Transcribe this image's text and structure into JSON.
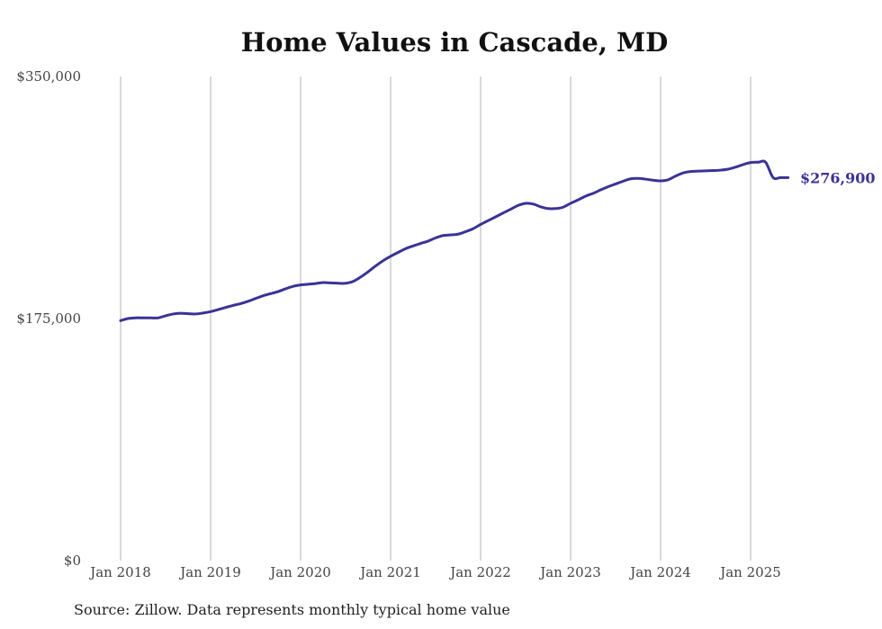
{
  "chart_data": {
    "type": "line",
    "title": "Home Values in Cascade, MD",
    "xlabel": "",
    "ylabel": "",
    "y_ticks": [
      "$0",
      "$175,000",
      "$350,000"
    ],
    "y_tick_values": [
      0,
      175000,
      350000
    ],
    "ylim": [
      0,
      350000
    ],
    "x_ticks": [
      "Jan 2018",
      "Jan 2019",
      "Jan 2020",
      "Jan 2021",
      "Jan 2022",
      "Jan 2023",
      "Jan 2024",
      "Jan 2025"
    ],
    "x_tick_dates": [
      "2018-01",
      "2019-01",
      "2020-01",
      "2021-01",
      "2022-01",
      "2023-01",
      "2024-01",
      "2025-01"
    ],
    "grid": "vertical",
    "line_color": "#3a3396",
    "series": [
      {
        "x": [
          "2018-01",
          "2018-02",
          "2018-03",
          "2018-04",
          "2018-05",
          "2018-06",
          "2018-07",
          "2018-08",
          "2018-09",
          "2018-10",
          "2018-11",
          "2018-12",
          "2019-01",
          "2019-02",
          "2019-03",
          "2019-04",
          "2019-05",
          "2019-06",
          "2019-07",
          "2019-08",
          "2019-09",
          "2019-10",
          "2019-11",
          "2019-12",
          "2020-01",
          "2020-02",
          "2020-03",
          "2020-04",
          "2020-05",
          "2020-06",
          "2020-07",
          "2020-08",
          "2020-09",
          "2020-10",
          "2020-11",
          "2020-12",
          "2021-01",
          "2021-02",
          "2021-03",
          "2021-04",
          "2021-05",
          "2021-06",
          "2021-07",
          "2021-08",
          "2021-09",
          "2021-10",
          "2021-11",
          "2021-12",
          "2022-01",
          "2022-02",
          "2022-03",
          "2022-04",
          "2022-05",
          "2022-06",
          "2022-07",
          "2022-08",
          "2022-09",
          "2022-10",
          "2022-11",
          "2022-12",
          "2023-01",
          "2023-02",
          "2023-03",
          "2023-04",
          "2023-05",
          "2023-06",
          "2023-07",
          "2023-08",
          "2023-09",
          "2023-10",
          "2023-11",
          "2023-12",
          "2024-01",
          "2024-02",
          "2024-03",
          "2024-04",
          "2024-05",
          "2024-06",
          "2024-07",
          "2024-08",
          "2024-09",
          "2024-10",
          "2024-11",
          "2024-12",
          "2025-01",
          "2025-02",
          "2025-03",
          "2025-04",
          "2025-05",
          "2025-06"
        ],
        "values": [
          173500,
          175000,
          175500,
          175500,
          175500,
          175500,
          177000,
          178300,
          178800,
          178500,
          178300,
          179000,
          180000,
          181500,
          183000,
          184500,
          185800,
          187500,
          189500,
          191500,
          193000,
          194500,
          196500,
          198300,
          199300,
          199800,
          200300,
          201000,
          200800,
          200500,
          200500,
          201800,
          205000,
          208800,
          213000,
          216800,
          220000,
          222800,
          225500,
          227500,
          229300,
          231000,
          233300,
          235000,
          235500,
          236000,
          237800,
          240000,
          243000,
          245800,
          248500,
          251300,
          254000,
          256800,
          258300,
          257800,
          255800,
          254500,
          254500,
          255500,
          258300,
          260800,
          263500,
          265500,
          268000,
          270300,
          272300,
          274300,
          276000,
          276300,
          275800,
          275000,
          274500,
          275300,
          278000,
          280300,
          281300,
          281600,
          281800,
          282000,
          282300,
          283000,
          284500,
          286300,
          287800,
          288000,
          288000,
          276900,
          276900,
          276900
        ],
        "end_label": "$276,900"
      }
    ]
  },
  "footer": {
    "source": "Source: Zillow. Data represents monthly typical home value"
  }
}
